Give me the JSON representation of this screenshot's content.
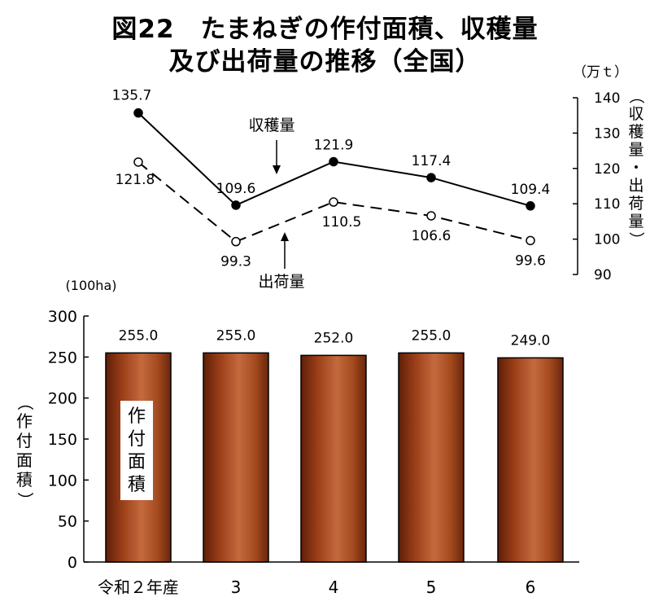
{
  "title": {
    "line1": "図22　たまねぎの作付面積、収穫量",
    "line2": "及び出荷量の推移（全国）"
  },
  "chart_data": [
    {
      "type": "line",
      "categories": [
        "令和２年産",
        "3",
        "4",
        "5",
        "6"
      ],
      "series": [
        {
          "name": "収穫量",
          "values": [
            135.7,
            109.6,
            121.9,
            117.4,
            109.4
          ],
          "value_labels": [
            "135.7",
            "109.6",
            "121.9",
            "117.4",
            "109.4"
          ],
          "marker": "filled",
          "line": "solid"
        },
        {
          "name": "出荷量",
          "values": [
            121.8,
            99.3,
            110.5,
            106.6,
            99.6
          ],
          "value_labels": [
            "121.8",
            "99.3",
            "110.5",
            "106.6",
            "99.6"
          ],
          "marker": "hollow",
          "line": "dashed"
        }
      ],
      "ylabel": "収穫量・出荷量",
      "yunit": "（万ｔ）",
      "ylim": [
        90,
        140
      ],
      "yticks": [
        "140",
        "130",
        "120",
        "110",
        "100",
        "90"
      ],
      "yaxis_side": "right",
      "grid": false
    },
    {
      "type": "bar",
      "categories": [
        "令和２年産",
        "3",
        "4",
        "5",
        "6"
      ],
      "values": [
        255.0,
        255.0,
        252.0,
        255.0,
        249.0
      ],
      "value_labels": [
        "255.0",
        "255.0",
        "252.0",
        "255.0",
        "249.0"
      ],
      "series_label": "作付面積",
      "ylabel": "作付面積",
      "yunit": "(100ha)",
      "ylim": [
        0,
        300
      ],
      "yticks": [
        "300",
        "250",
        "200",
        "150",
        "100",
        "50",
        "0"
      ],
      "bar_color": "#a0421c",
      "grid": false
    }
  ]
}
